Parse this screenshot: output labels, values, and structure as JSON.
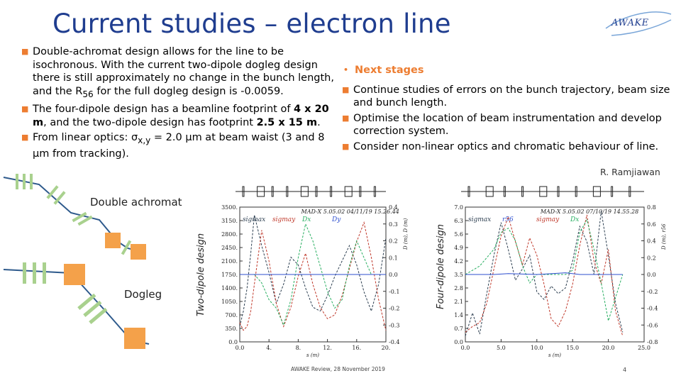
{
  "slide": {
    "title": "Current studies – electron line",
    "logo_text": "AWAKE",
    "credit": "R. Ramjiawan",
    "footer": "AWAKE Review, 28 November 2019",
    "page_number": "4"
  },
  "left_bullets": [
    {
      "text": "Double-achromat design allows for the line to be isochronous. With the current two-dipole dogleg design there is still approximately no change in the bunch length, and the R",
      "sub": "56",
      "tail": " for the full dogleg design is -0.0059."
    },
    {
      "pre": "The four-dipole design has a beamline footprint of ",
      "b1": "4 x 20 m",
      "mid": ", and the two-dipole design has footprint ",
      "b2": "2.5 x 15 m",
      "post": "."
    },
    {
      "pre": "From linear optics: σ",
      "sub": "x,y",
      "post": " = 2.0 µm at beam waist (3 and 8 µm from tracking)."
    }
  ],
  "right": {
    "heading": "Next stages",
    "bullets": [
      "Continue studies of errors on the bunch trajectory, beam size and bunch length.",
      "Optimise the location of beam instrumentation and develop correction system.",
      "Consider non-linear optics and chromatic behaviour of line."
    ]
  },
  "schematic": {
    "label_top": "Double achromat",
    "label_bottom": "Dogleg",
    "colors": {
      "dipole": "#f4a14a",
      "quad": "#a9d18e",
      "beam": "#2e5a8c"
    }
  },
  "plot_labels": {
    "two_dipole": "Two-dipole design",
    "four_dipole": "Four-dipole design"
  },
  "chart_data": [
    {
      "type": "line",
      "name_header": "MAD-X 5.05.02  04/11/19 15.26.44",
      "legend": [
        "sigmax",
        "sigmay",
        "Dx",
        "Dy"
      ],
      "xlabel": "s (m)",
      "ylabel_right": "D (m), D (m)",
      "xlim": [
        0,
        20
      ],
      "xticks": [
        "0.0",
        "4.",
        "8.",
        "12.",
        "16.",
        "20."
      ],
      "ylim_left": [
        0,
        3500
      ],
      "yticks_left": [
        "0.0",
        "350.",
        "700.",
        "1050.",
        "1400.",
        "1750.",
        "2100.",
        "2450.",
        "2800.",
        "3150.",
        "3500."
      ],
      "ylim_right": [
        -0.4,
        0.4
      ],
      "yticks_right": [
        "-0.4",
        "-0.3",
        "-0.2",
        "-0.1",
        "0.0",
        "0.1",
        "0.2",
        "0.3",
        "0.4"
      ],
      "series": [
        {
          "name": "sigmax",
          "color": "#2c3e50",
          "x": [
            0,
            0.5,
            1,
            1.5,
            2,
            3,
            4,
            5,
            6,
            7,
            8,
            9,
            10,
            11,
            12,
            13,
            14,
            15,
            16,
            17,
            18,
            19,
            20
          ],
          "y": [
            400,
            800,
            1400,
            2300,
            3300,
            2500,
            1800,
            1000,
            1500,
            2200,
            2000,
            1400,
            900,
            800,
            1200,
            1700,
            2100,
            2500,
            2000,
            1300,
            800,
            1500,
            2700
          ]
        },
        {
          "name": "sigmay",
          "color": "#c0392b",
          "x": [
            0,
            0.5,
            1,
            1.5,
            2,
            3,
            4,
            5,
            6,
            7,
            8,
            9,
            10,
            11,
            12,
            13,
            14,
            15,
            16,
            17,
            18,
            19,
            20
          ],
          "y": [
            500,
            300,
            400,
            800,
            1500,
            2900,
            2100,
            1000,
            400,
            900,
            1700,
            2300,
            1500,
            900,
            600,
            700,
            1200,
            1900,
            2600,
            3100,
            2200,
            1100,
            300
          ]
        },
        {
          "name": "Dx",
          "color": "#27ae60",
          "axis": "right",
          "x": [
            0,
            1,
            2,
            3,
            4,
            5,
            6,
            7,
            8,
            9,
            10,
            11,
            12,
            13,
            14,
            15,
            16,
            17,
            18,
            19,
            20
          ],
          "y": [
            0,
            0,
            0,
            -0.05,
            -0.15,
            -0.2,
            -0.3,
            -0.15,
            0.1,
            0.3,
            0.2,
            0.05,
            -0.1,
            -0.2,
            -0.15,
            0.05,
            0.2,
            0.1,
            0,
            0,
            0
          ]
        },
        {
          "name": "Dy",
          "color": "#2e4fcf",
          "axis": "right",
          "x": [
            0,
            20
          ],
          "y": [
            0,
            0
          ]
        }
      ]
    },
    {
      "type": "line",
      "name_header": "MAD-X 5.05.02  07/10/19 14.55.28",
      "legend": [
        "sigmax",
        "r56",
        "sigmay",
        "Dx"
      ],
      "xlabel": "s (m)",
      "ylabel_right": "D (m), r56",
      "xlim": [
        0,
        25
      ],
      "xticks": [
        "0.0",
        "5.0",
        "10.0",
        "15.0",
        "20.0",
        "25.0"
      ],
      "ylim_left": [
        0,
        7
      ],
      "yticks_left": [
        "0.0",
        "0.7",
        "1.4",
        "2.1",
        "2.8",
        "3.5",
        "4.2",
        "4.9",
        "5.6",
        "6.3",
        "7.0"
      ],
      "ylim_right": [
        -0.8,
        0.8
      ],
      "yticks_right": [
        "-0.8",
        "-0.6",
        "-0.4",
        "-0.2",
        "0.0",
        "0.2",
        "0.4",
        "0.6",
        "0.8"
      ],
      "series": [
        {
          "name": "sigmax",
          "color": "#2c3e50",
          "x": [
            0,
            1,
            2,
            3,
            4,
            5,
            6,
            7,
            8,
            9,
            10,
            11,
            12,
            13,
            14,
            15,
            16,
            17,
            18,
            19,
            20,
            21,
            22
          ],
          "y": [
            0.3,
            1.5,
            0.4,
            2.5,
            4.5,
            6.2,
            4.8,
            3.2,
            3.8,
            4.5,
            2.6,
            2.2,
            2.9,
            2.5,
            2.8,
            4.2,
            6.0,
            5.2,
            3.5,
            6.8,
            4.5,
            2.0,
            0.5
          ]
        },
        {
          "name": "sigmay",
          "color": "#c0392b",
          "x": [
            0,
            1,
            2,
            3,
            4,
            5,
            6,
            7,
            8,
            9,
            10,
            11,
            12,
            13,
            14,
            15,
            16,
            17,
            18,
            19,
            20,
            21,
            22
          ],
          "y": [
            0.5,
            0.8,
            1.0,
            2.0,
            3.8,
            5.5,
            6.5,
            5.2,
            4.0,
            5.4,
            4.5,
            3.0,
            1.2,
            0.8,
            1.6,
            3.0,
            5.0,
            6.6,
            4.2,
            3.0,
            4.8,
            1.6,
            0.3
          ]
        },
        {
          "name": "Dx",
          "color": "#27ae60",
          "axis": "right",
          "x": [
            0,
            2,
            4,
            5,
            6,
            7,
            8,
            9,
            10,
            12,
            14,
            15,
            16,
            17,
            18,
            19,
            20,
            22
          ],
          "y": [
            0,
            0.1,
            0.3,
            0.5,
            0.55,
            0.4,
            0.1,
            -0.1,
            0,
            0,
            0,
            0.05,
            0.5,
            0.65,
            0.3,
            -0.1,
            -0.55,
            0
          ]
        },
        {
          "name": "r56",
          "color": "#2e4fcf",
          "axis": "right",
          "x": [
            0,
            4,
            6,
            10,
            14,
            16,
            20,
            22
          ],
          "y": [
            0,
            0,
            0.01,
            0,
            0.02,
            0,
            0,
            0
          ]
        }
      ]
    }
  ]
}
